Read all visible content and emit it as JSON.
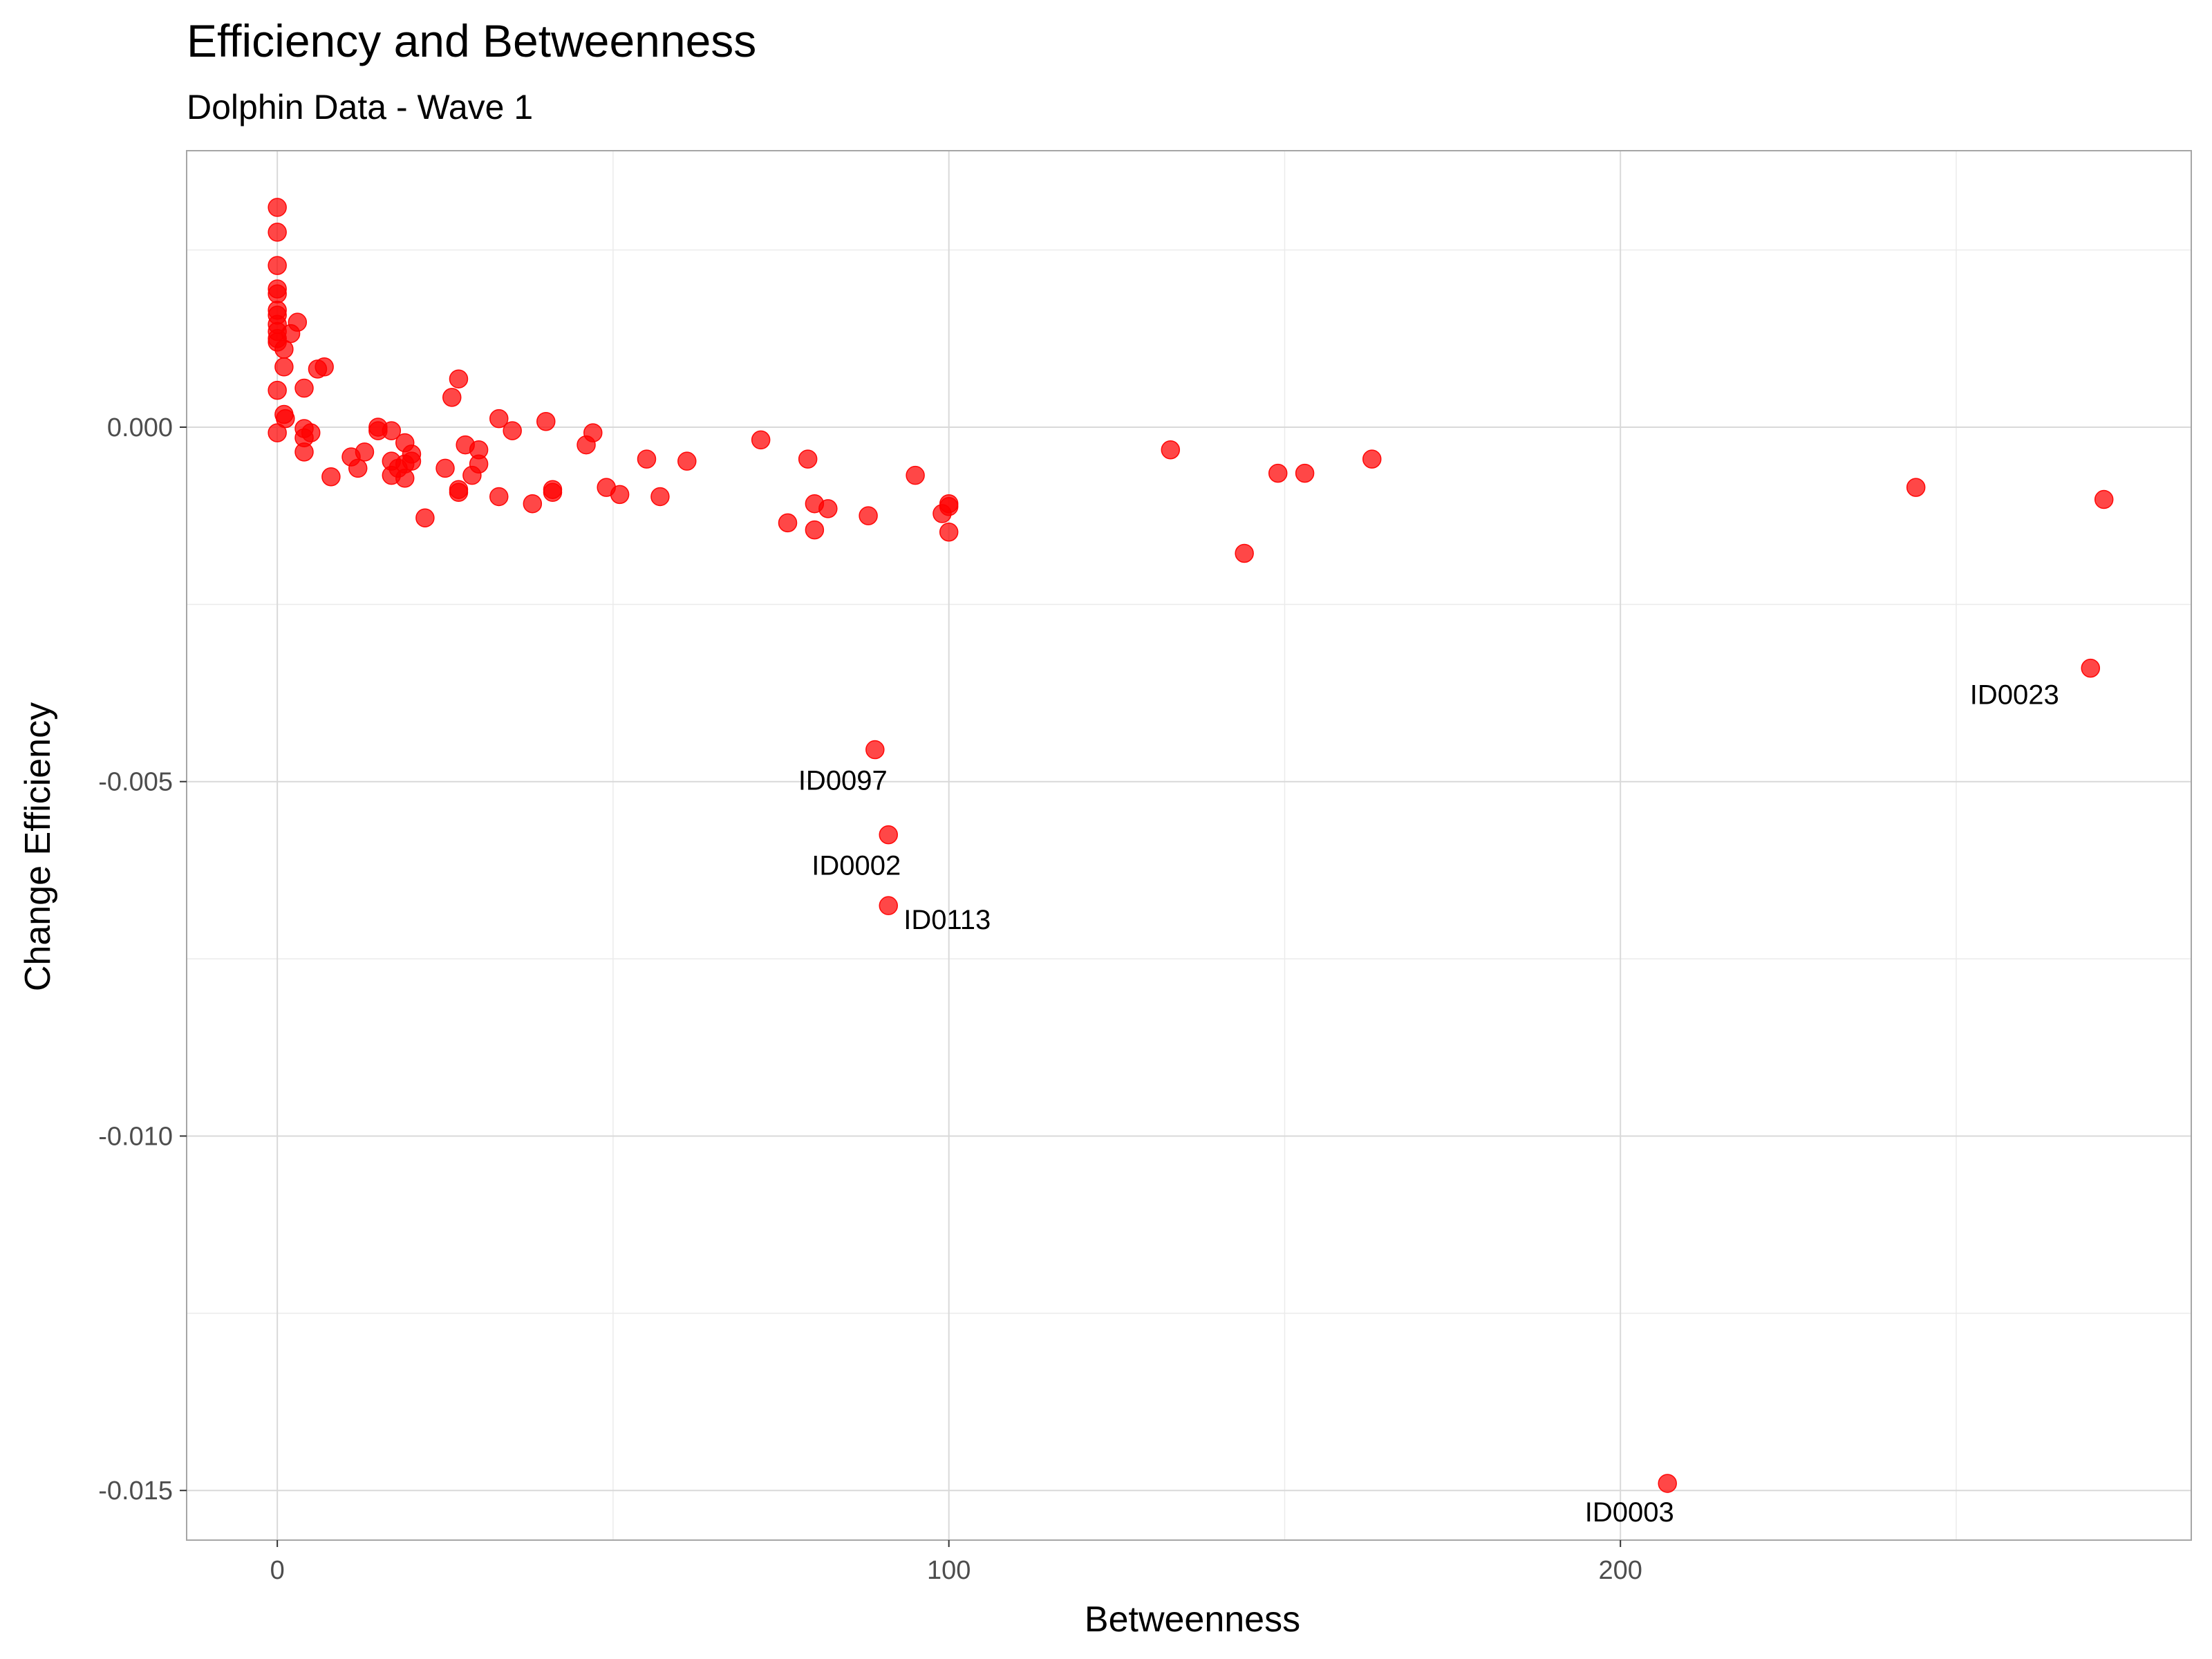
{
  "chart_data": {
    "type": "scatter",
    "title": "Efficiency and Betweenness",
    "subtitle": "Dolphin Data - Wave 1",
    "xlabel": "Betweenness",
    "ylabel": "Change Efficiency",
    "xlim": [
      -13.5,
      285
    ],
    "ylim": [
      -0.0157,
      0.0039
    ],
    "xticks": [
      0,
      100,
      200
    ],
    "xtick_labels": [
      "0",
      "100",
      "200"
    ],
    "xminor": [
      50,
      150,
      250
    ],
    "yticks": [
      0.0,
      -0.005,
      -0.01,
      -0.015
    ],
    "ytick_labels": [
      "0.000",
      "-0.005",
      "-0.010",
      "-0.015"
    ],
    "yminor": [
      0.0025,
      -0.0025,
      -0.0075,
      -0.0125
    ],
    "grid": true,
    "color": "#ff0000",
    "points": [
      {
        "x": 0,
        "y": 0.0031
      },
      {
        "x": 0,
        "y": 0.00275
      },
      {
        "x": 0,
        "y": 0.00228
      },
      {
        "x": 0,
        "y": 0.00195
      },
      {
        "x": 0,
        "y": 0.00188
      },
      {
        "x": 0,
        "y": 0.00165
      },
      {
        "x": 0,
        "y": 0.00158
      },
      {
        "x": 0,
        "y": 0.00145
      },
      {
        "x": 0,
        "y": 0.00135
      },
      {
        "x": 0,
        "y": 0.00125
      },
      {
        "x": 0,
        "y": 0.0012
      },
      {
        "x": 0,
        "y": 0.00052
      },
      {
        "x": 0,
        "y": -8e-05
      },
      {
        "x": 1,
        "y": 0.0011
      },
      {
        "x": 1,
        "y": 0.00085
      },
      {
        "x": 1,
        "y": 0.00018
      },
      {
        "x": 1.2,
        "y": 0.00012
      },
      {
        "x": 2,
        "y": 0.00132
      },
      {
        "x": 3,
        "y": 0.00148
      },
      {
        "x": 4,
        "y": 0.00055
      },
      {
        "x": 4,
        "y": -2e-05
      },
      {
        "x": 4,
        "y": -0.00015
      },
      {
        "x": 4,
        "y": -0.00035
      },
      {
        "x": 5,
        "y": -8e-05
      },
      {
        "x": 6,
        "y": 0.00082
      },
      {
        "x": 7,
        "y": 0.00085
      },
      {
        "x": 8,
        "y": -0.0007
      },
      {
        "x": 11,
        "y": -0.00042
      },
      {
        "x": 12,
        "y": -0.00058
      },
      {
        "x": 13,
        "y": -0.00035
      },
      {
        "x": 15,
        "y": 0.0
      },
      {
        "x": 15,
        "y": -5e-05
      },
      {
        "x": 17,
        "y": -5e-05
      },
      {
        "x": 17,
        "y": -0.00048
      },
      {
        "x": 17,
        "y": -0.00068
      },
      {
        "x": 18,
        "y": -0.00058
      },
      {
        "x": 19,
        "y": -0.00022
      },
      {
        "x": 19,
        "y": -0.00052
      },
      {
        "x": 19,
        "y": -0.00072
      },
      {
        "x": 20,
        "y": -0.00038
      },
      {
        "x": 20,
        "y": -0.00048
      },
      {
        "x": 22,
        "y": -0.00128
      },
      {
        "x": 25,
        "y": -0.00058
      },
      {
        "x": 26,
        "y": 0.00042
      },
      {
        "x": 27,
        "y": 0.00068
      },
      {
        "x": 27,
        "y": -0.00088
      },
      {
        "x": 27,
        "y": -0.00092
      },
      {
        "x": 28,
        "y": -0.00025
      },
      {
        "x": 29,
        "y": -0.00068
      },
      {
        "x": 30,
        "y": -0.00032
      },
      {
        "x": 30,
        "y": -0.00052
      },
      {
        "x": 33,
        "y": 0.00012
      },
      {
        "x": 33,
        "y": -0.00098
      },
      {
        "x": 35,
        "y": -5e-05
      },
      {
        "x": 38,
        "y": -0.00108
      },
      {
        "x": 40,
        "y": 8e-05
      },
      {
        "x": 41,
        "y": -0.00088
      },
      {
        "x": 41,
        "y": -0.00092
      },
      {
        "x": 46,
        "y": -0.00025
      },
      {
        "x": 47,
        "y": -8e-05
      },
      {
        "x": 49,
        "y": -0.00085
      },
      {
        "x": 51,
        "y": -0.00095
      },
      {
        "x": 55,
        "y": -0.00045
      },
      {
        "x": 57,
        "y": -0.00098
      },
      {
        "x": 61,
        "y": -0.00048
      },
      {
        "x": 72,
        "y": -0.00018
      },
      {
        "x": 76,
        "y": -0.00135
      },
      {
        "x": 79,
        "y": -0.00045
      },
      {
        "x": 80,
        "y": -0.00108
      },
      {
        "x": 80,
        "y": -0.00145
      },
      {
        "x": 82,
        "y": -0.00115
      },
      {
        "x": 88,
        "y": -0.00125
      },
      {
        "x": 95,
        "y": -0.00068
      },
      {
        "x": 99,
        "y": -0.00122
      },
      {
        "x": 100,
        "y": -0.00108
      },
      {
        "x": 100,
        "y": -0.00112
      },
      {
        "x": 100,
        "y": -0.00148
      },
      {
        "x": 133,
        "y": -0.00032
      },
      {
        "x": 144,
        "y": -0.00178
      },
      {
        "x": 149,
        "y": -0.00065
      },
      {
        "x": 153,
        "y": -0.00065
      },
      {
        "x": 163,
        "y": -0.00045
      },
      {
        "x": 244,
        "y": -0.00085
      },
      {
        "x": 272,
        "y": -0.00102
      },
      {
        "x": 89,
        "y": -0.00455,
        "label": "ID0097"
      },
      {
        "x": 91,
        "y": -0.00575,
        "label": "ID0002"
      },
      {
        "x": 91,
        "y": -0.00675,
        "label": "ID0113"
      },
      {
        "x": 270,
        "y": -0.0034,
        "label": "ID0023"
      },
      {
        "x": 207,
        "y": -0.0149,
        "label": "ID0003"
      }
    ]
  }
}
